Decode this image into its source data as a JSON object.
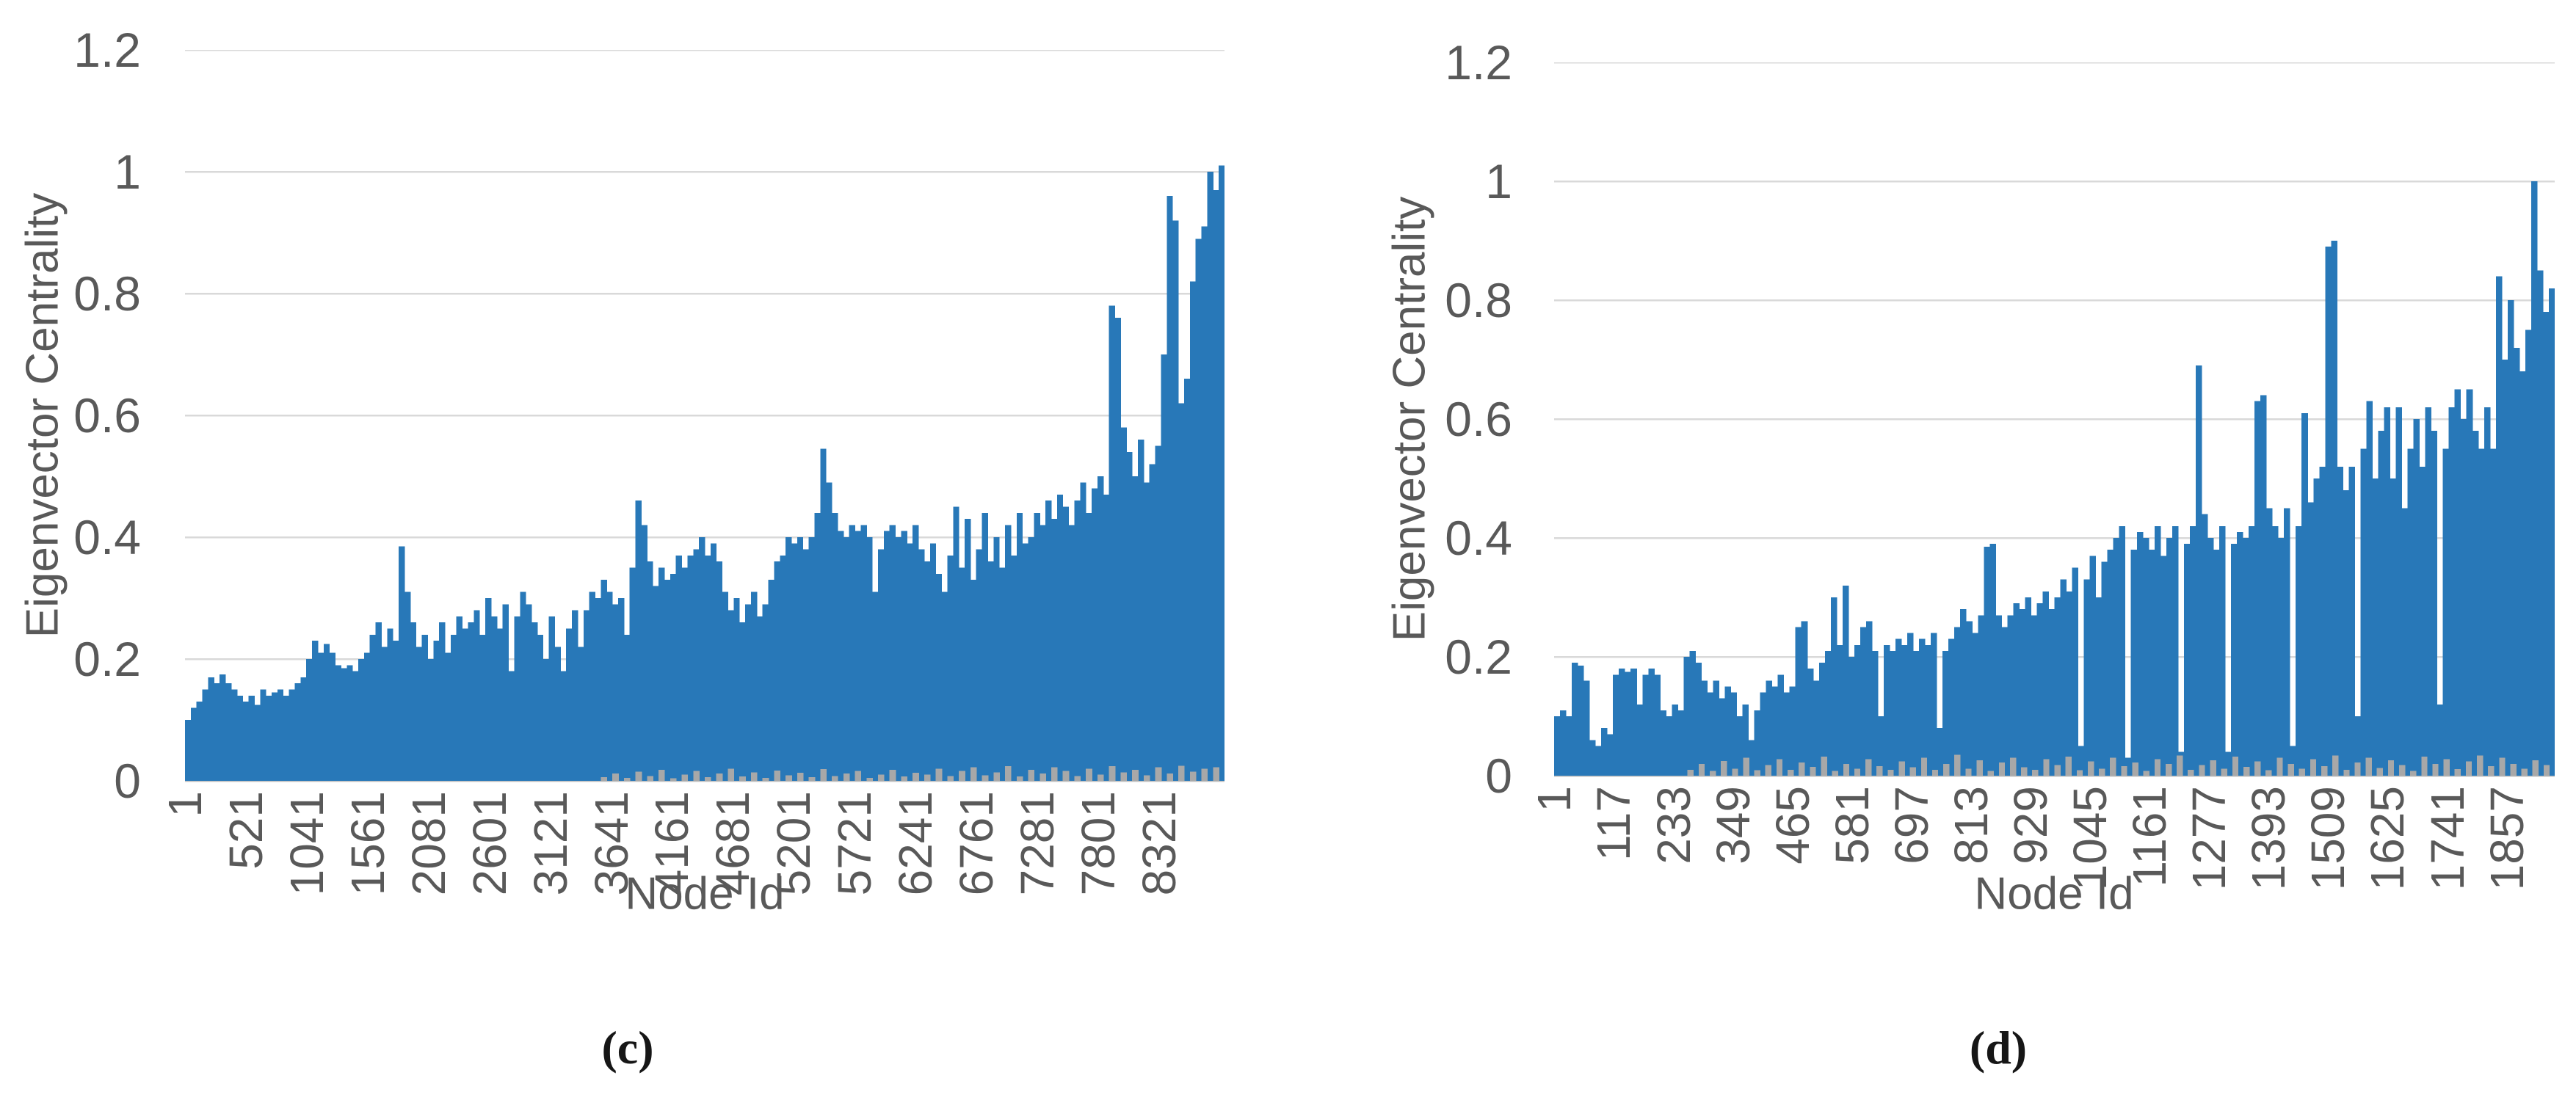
{
  "figure": {
    "background": "#FFFFFF"
  },
  "colors": {
    "bar": "#2878B8",
    "fringe": "#A8A8A8",
    "gridline": "#D9D9D9",
    "axis_line": "#BFBFBF",
    "tick_text": "#595959",
    "caption_text": "#161616"
  },
  "chart_data": [
    {
      "id": "c",
      "type": "bar",
      "caption": "(c)",
      "ylabel": "Eigenvector Centrality",
      "xlabel": "Node Id",
      "ylim": [
        0,
        1.2
      ],
      "grid": "horizontal",
      "legend": "none",
      "y_tick_labels": [
        "1.2",
        "1",
        "0.8",
        "0.6",
        "0.4",
        "0.2",
        "0"
      ],
      "x_tick_labels": [
        "1",
        "521",
        "1041",
        "1561",
        "2081",
        "2601",
        "3121",
        "3641",
        "4161",
        "4681",
        "5201",
        "5721",
        "6241",
        "6761",
        "7281",
        "7801",
        "8321"
      ],
      "x_total": 8880,
      "bar_color": "#2878B8",
      "values": [
        0.1,
        0.12,
        0.13,
        0.15,
        0.17,
        0.16,
        0.175,
        0.16,
        0.15,
        0.14,
        0.13,
        0.14,
        0.125,
        0.15,
        0.14,
        0.145,
        0.15,
        0.14,
        0.15,
        0.16,
        0.17,
        0.2,
        0.23,
        0.21,
        0.225,
        0.21,
        0.19,
        0.185,
        0.19,
        0.18,
        0.2,
        0.21,
        0.24,
        0.26,
        0.22,
        0.25,
        0.23,
        0.385,
        0.31,
        0.26,
        0.22,
        0.24,
        0.2,
        0.23,
        0.26,
        0.21,
        0.24,
        0.27,
        0.25,
        0.26,
        0.28,
        0.24,
        0.3,
        0.27,
        0.25,
        0.29,
        0.18,
        0.27,
        0.31,
        0.29,
        0.26,
        0.24,
        0.2,
        0.27,
        0.22,
        0.18,
        0.25,
        0.28,
        0.22,
        0.28,
        0.31,
        0.3,
        0.33,
        0.31,
        0.29,
        0.3,
        0.24,
        0.35,
        0.46,
        0.42,
        0.36,
        0.32,
        0.35,
        0.33,
        0.34,
        0.37,
        0.35,
        0.37,
        0.38,
        0.4,
        0.37,
        0.39,
        0.36,
        0.31,
        0.28,
        0.3,
        0.26,
        0.29,
        0.31,
        0.27,
        0.29,
        0.33,
        0.36,
        0.37,
        0.4,
        0.39,
        0.4,
        0.38,
        0.4,
        0.44,
        0.545,
        0.49,
        0.44,
        0.41,
        0.4,
        0.42,
        0.41,
        0.42,
        0.4,
        0.31,
        0.38,
        0.41,
        0.42,
        0.4,
        0.41,
        0.39,
        0.42,
        0.38,
        0.36,
        0.39,
        0.34,
        0.31,
        0.37,
        0.45,
        0.35,
        0.43,
        0.33,
        0.38,
        0.44,
        0.36,
        0.4,
        0.35,
        0.42,
        0.37,
        0.44,
        0.39,
        0.4,
        0.44,
        0.42,
        0.46,
        0.43,
        0.47,
        0.45,
        0.42,
        0.46,
        0.49,
        0.44,
        0.48,
        0.5,
        0.47,
        0.78,
        0.76,
        0.58,
        0.54,
        0.5,
        0.56,
        0.49,
        0.52,
        0.55,
        0.7,
        0.96,
        0.92,
        0.62,
        0.66,
        0.82,
        0.89,
        0.91,
        1.0,
        0.97,
        1.01
      ],
      "secondary_series": {
        "color": "#A8A8A8",
        "values": [
          0,
          0,
          0,
          0,
          0,
          0,
          0,
          0,
          0,
          0,
          0,
          0,
          0,
          0,
          0,
          0,
          0,
          0,
          0,
          0,
          0,
          0,
          0,
          0,
          0,
          0,
          0,
          0,
          0,
          0,
          0,
          0,
          0,
          0,
          0,
          0,
          0.006,
          0.012,
          0.005,
          0.015,
          0.008,
          0.018,
          0.004,
          0.01,
          0.016,
          0.006,
          0.012,
          0.02,
          0.007,
          0.014,
          0.005,
          0.017,
          0.009,
          0.013,
          0.006,
          0.019,
          0.008,
          0.012,
          0.016,
          0.005,
          0.01,
          0.018,
          0.007,
          0.013,
          0.01,
          0.02,
          0.008,
          0.016,
          0.022,
          0.009,
          0.014,
          0.024,
          0.007,
          0.018,
          0.012,
          0.022,
          0.016,
          0.008,
          0.02,
          0.01,
          0.024,
          0.014,
          0.018,
          0.009,
          0.022,
          0.012,
          0.025,
          0.015,
          0.02,
          0.022
        ]
      }
    },
    {
      "id": "d",
      "type": "bar",
      "caption": "(d)",
      "ylabel": "Eigenvector Centrality",
      "xlabel": "Node Id",
      "ylim": [
        0,
        1.2
      ],
      "grid": "horizontal",
      "legend": "none",
      "y_tick_labels": [
        "1.2",
        "1",
        "0.8",
        "0.6",
        "0.4",
        "0.2",
        "0"
      ],
      "x_tick_labels": [
        "1",
        "117",
        "233",
        "349",
        "465",
        "581",
        "697",
        "813",
        "929",
        "1045",
        "1161",
        "1277",
        "1393",
        "1509",
        "1625",
        "1741",
        "1857"
      ],
      "x_total": 1950,
      "bar_color": "#2878B8",
      "values": [
        0.1,
        0.11,
        0.1,
        0.19,
        0.185,
        0.16,
        0.06,
        0.05,
        0.08,
        0.07,
        0.17,
        0.18,
        0.175,
        0.18,
        0.12,
        0.17,
        0.18,
        0.17,
        0.11,
        0.1,
        0.12,
        0.11,
        0.2,
        0.21,
        0.19,
        0.16,
        0.14,
        0.16,
        0.13,
        0.15,
        0.14,
        0.1,
        0.12,
        0.06,
        0.11,
        0.14,
        0.16,
        0.15,
        0.17,
        0.14,
        0.15,
        0.25,
        0.26,
        0.18,
        0.16,
        0.19,
        0.21,
        0.3,
        0.22,
        0.32,
        0.2,
        0.22,
        0.25,
        0.26,
        0.21,
        0.1,
        0.22,
        0.21,
        0.23,
        0.22,
        0.24,
        0.21,
        0.23,
        0.22,
        0.24,
        0.08,
        0.21,
        0.23,
        0.25,
        0.28,
        0.26,
        0.24,
        0.27,
        0.385,
        0.39,
        0.27,
        0.25,
        0.27,
        0.29,
        0.28,
        0.3,
        0.27,
        0.29,
        0.31,
        0.28,
        0.3,
        0.33,
        0.31,
        0.35,
        0.05,
        0.33,
        0.37,
        0.3,
        0.36,
        0.38,
        0.4,
        0.42,
        0.03,
        0.38,
        0.41,
        0.4,
        0.38,
        0.42,
        0.37,
        0.4,
        0.42,
        0.04,
        0.39,
        0.42,
        0.69,
        0.44,
        0.4,
        0.38,
        0.42,
        0.04,
        0.39,
        0.41,
        0.4,
        0.42,
        0.63,
        0.64,
        0.45,
        0.42,
        0.4,
        0.45,
        0.05,
        0.42,
        0.61,
        0.46,
        0.5,
        0.52,
        0.89,
        0.9,
        0.52,
        0.48,
        0.52,
        0.1,
        0.55,
        0.63,
        0.5,
        0.58,
        0.62,
        0.5,
        0.62,
        0.45,
        0.55,
        0.6,
        0.52,
        0.62,
        0.58,
        0.12,
        0.55,
        0.62,
        0.65,
        0.6,
        0.65,
        0.58,
        0.55,
        0.62,
        0.55,
        0.84,
        0.7,
        0.8,
        0.72,
        0.68,
        0.75,
        1.0,
        0.85,
        0.78,
        0.82
      ],
      "secondary_series": {
        "color": "#A8A8A8",
        "values": [
          0,
          0,
          0,
          0,
          0,
          0,
          0,
          0,
          0,
          0,
          0,
          0,
          0.01,
          0.02,
          0.008,
          0.025,
          0.012,
          0.03,
          0.009,
          0.018,
          0.028,
          0.01,
          0.022,
          0.015,
          0.032,
          0.008,
          0.02,
          0.012,
          0.028,
          0.016,
          0.01,
          0.024,
          0.014,
          0.03,
          0.01,
          0.02,
          0.035,
          0.012,
          0.026,
          0.008,
          0.022,
          0.03,
          0.014,
          0.01,
          0.028,
          0.018,
          0.032,
          0.009,
          0.024,
          0.012,
          0.03,
          0.016,
          0.022,
          0.008,
          0.028,
          0.02,
          0.034,
          0.01,
          0.018,
          0.026,
          0.012,
          0.032,
          0.015,
          0.024,
          0.009,
          0.03,
          0.02,
          0.012,
          0.028,
          0.016,
          0.034,
          0.01,
          0.022,
          0.03,
          0.013,
          0.026,
          0.018,
          0.008,
          0.032,
          0.02,
          0.028,
          0.011,
          0.024,
          0.034,
          0.016,
          0.03,
          0.02,
          0.012,
          0.026,
          0.018
        ]
      }
    }
  ]
}
